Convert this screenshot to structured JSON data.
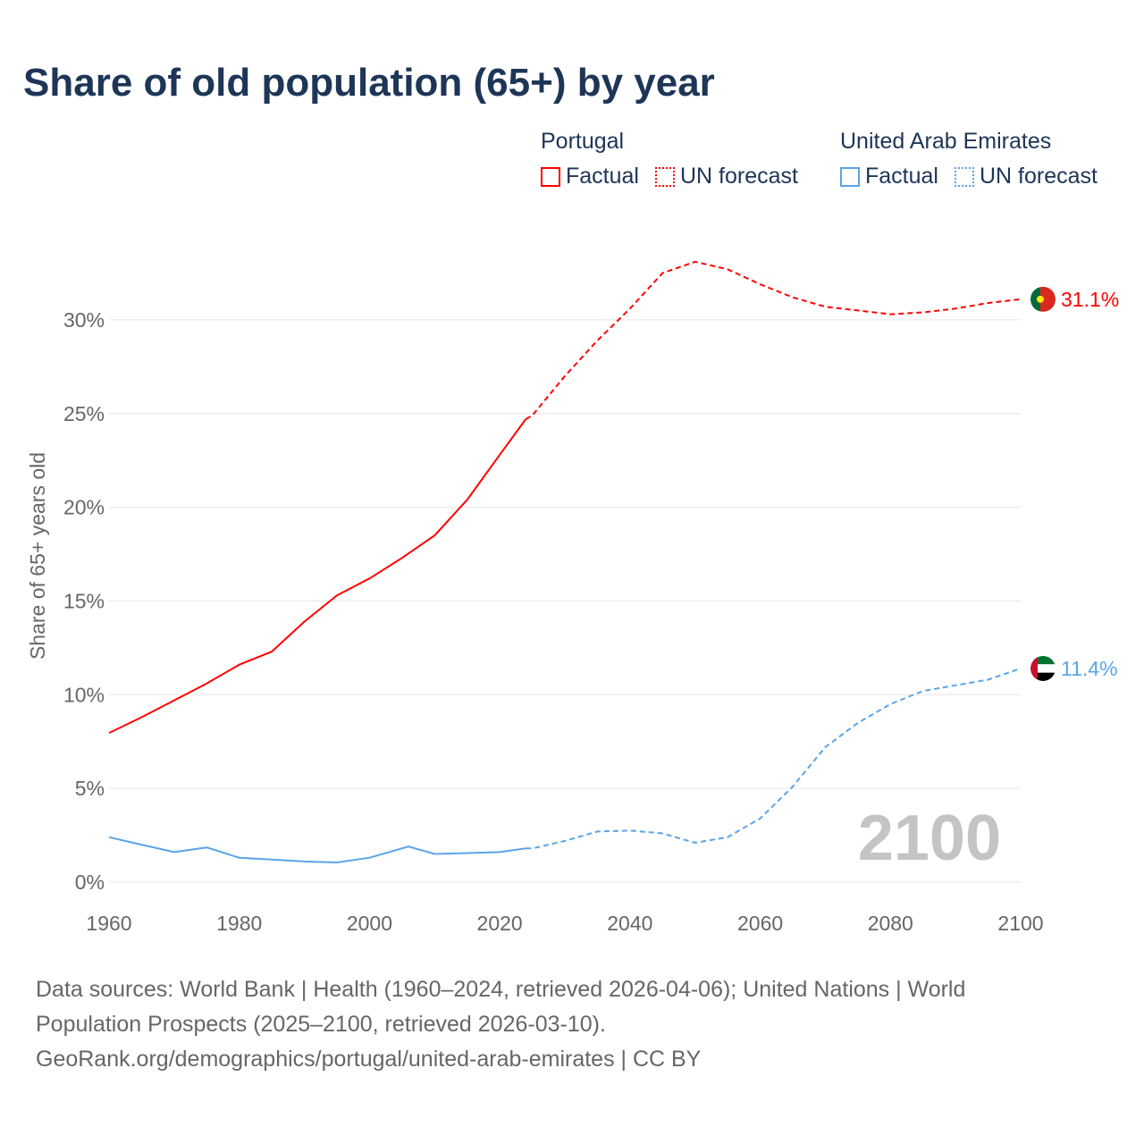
{
  "title": "Share of old population (65+) by year",
  "legend": [
    {
      "country": "Portugal",
      "factual": "Factual",
      "forecast": "UN forecast",
      "color": "#ff0000"
    },
    {
      "country": "United Arab Emirates",
      "factual": "Factual",
      "forecast": "UN forecast",
      "color": "#5aa4e8"
    }
  ],
  "footer": {
    "line1": "Data sources: World Bank | Health (1960–2024, retrieved 2026-04-06); United Nations | World Population Prospects (2025–2100, retrieved 2026-03-10).",
    "line2": "GeoRank.org/demographics/portugal/united-arab-emirates | CC BY"
  },
  "chart_data": {
    "type": "line",
    "title": "Share of old population (65+) by year",
    "xlabel": "",
    "ylabel": "Share of 65+ years old",
    "xlim": [
      1960,
      2100
    ],
    "ylim": [
      0,
      33
    ],
    "x_ticks": [
      "1960",
      "1980",
      "2000",
      "2020",
      "2040",
      "2060",
      "2080",
      "2100"
    ],
    "y_ticks": [
      "0%",
      "5%",
      "10%",
      "15%",
      "20%",
      "25%",
      "30%"
    ],
    "y_tick_values": [
      0,
      5,
      10,
      15,
      20,
      25,
      30
    ],
    "grid": true,
    "current_year_label": "2100",
    "series": [
      {
        "name": "Portugal",
        "color": "#ff0000",
        "end_label": "31.1%",
        "factual": {
          "x": [
            1960,
            1965,
            1970,
            1975,
            1980,
            1985,
            1990,
            1995,
            2000,
            2005,
            2010,
            2015,
            2020,
            2024
          ],
          "y": [
            7.96,
            8.8,
            9.7,
            10.6,
            11.6,
            12.3,
            13.9,
            15.3,
            16.2,
            17.3,
            18.5,
            20.4,
            22.8,
            24.7
          ]
        },
        "forecast": {
          "x": [
            2024,
            2025,
            2030,
            2035,
            2040,
            2045,
            2050,
            2055,
            2060,
            2065,
            2070,
            2075,
            2080,
            2085,
            2090,
            2095,
            2100
          ],
          "y": [
            24.7,
            24.9,
            27.0,
            28.9,
            30.6,
            32.5,
            33.1,
            32.7,
            31.9,
            31.2,
            30.7,
            30.5,
            30.3,
            30.4,
            30.6,
            30.9,
            31.1
          ]
        }
      },
      {
        "name": "United Arab Emirates",
        "color": "#5aa4e8",
        "end_label": "11.4%",
        "factual": {
          "x": [
            1960,
            1965,
            1970,
            1975,
            1980,
            1985,
            1990,
            1995,
            2000,
            2006,
            2010,
            2015,
            2020,
            2024
          ],
          "y": [
            2.4,
            2.0,
            1.6,
            1.85,
            1.3,
            1.2,
            1.1,
            1.05,
            1.3,
            1.9,
            1.5,
            1.55,
            1.6,
            1.8
          ]
        },
        "forecast": {
          "x": [
            2024,
            2025,
            2030,
            2035,
            2040,
            2045,
            2050,
            2055,
            2060,
            2065,
            2070,
            2075,
            2080,
            2085,
            2090,
            2095,
            2100
          ],
          "y": [
            1.8,
            1.8,
            2.2,
            2.7,
            2.75,
            2.6,
            2.1,
            2.4,
            3.4,
            5.1,
            7.2,
            8.5,
            9.5,
            10.2,
            10.5,
            10.8,
            11.4
          ]
        }
      }
    ]
  }
}
